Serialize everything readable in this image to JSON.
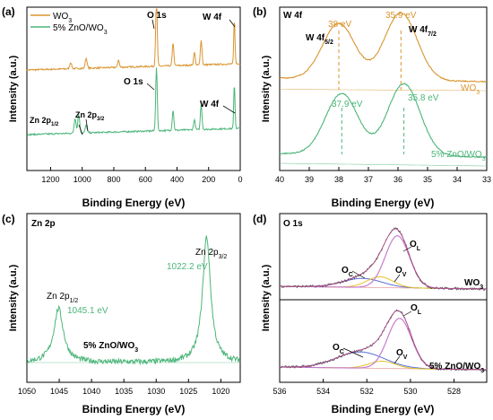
{
  "colors": {
    "wo3": "#d9952f",
    "zno": "#4cb57a",
    "axis": "#000000",
    "fit_purple": "#c77ccf",
    "fit_yellow": "#e6c32a",
    "fit_blue": "#5a6fd6",
    "fit_black": "#333333",
    "fit_baseline": "#e8a0a0"
  },
  "chart_data": [
    {
      "id": "a",
      "type": "line",
      "panel_label": "(a)",
      "xlabel": "Binding Energy (eV)",
      "ylabel": "Intensity (a.u.)",
      "xlim": [
        1350,
        0
      ],
      "xticks": [
        1200,
        1000,
        800,
        600,
        400,
        200,
        0
      ],
      "legend": [
        "WO3",
        "5% ZnO/WO3"
      ],
      "legend_position": "top-left",
      "series": [
        {
          "name": "WO3",
          "color": "#d9952f",
          "offset": 0.62,
          "peaks": [
            [
              1073,
              0.05
            ],
            [
              975,
              0.08
            ],
            [
              770,
              0.06
            ],
            [
              530,
              0.55
            ],
            [
              425,
              0.18
            ],
            [
              290,
              0.1
            ],
            [
              247,
              0.2
            ],
            [
              37,
              0.35
            ]
          ]
        },
        {
          "name": "5% ZnO/WO3",
          "color": "#4cb57a",
          "offset": 0.15,
          "peaks": [
            [
              1045,
              0.12
            ],
            [
              1022,
              0.15
            ],
            [
              975,
              0.06
            ],
            [
              530,
              0.5
            ],
            [
              425,
              0.16
            ],
            [
              290,
              0.08
            ],
            [
              247,
              0.2
            ],
            [
              37,
              0.35
            ]
          ]
        }
      ],
      "annotations": [
        {
          "text": "O 1s",
          "x": 530,
          "series": 0
        },
        {
          "text": "W 4f",
          "x": 37,
          "series": 0
        },
        {
          "text": "O 1s",
          "x": 530,
          "series": 1
        },
        {
          "text": "W 4f",
          "x": 37,
          "series": 1
        },
        {
          "text": "Zn 2p1/2",
          "x": 1045,
          "series": 1
        },
        {
          "text": "Zn 2p3/2",
          "x": 1022,
          "series": 1
        }
      ]
    },
    {
      "id": "b",
      "type": "line",
      "panel_label": "(b)",
      "title": "W 4f",
      "xlabel": "Binding Energy (eV)",
      "ylabel": "Intensity (a.u.)",
      "xlim": [
        40,
        33
      ],
      "xticks": [
        40,
        39,
        38,
        37,
        36,
        35,
        34,
        33
      ],
      "series": [
        {
          "name": "WO3",
          "color": "#d9952f",
          "label": "WO3",
          "peaks": [
            {
              "center": 38.0,
              "label": "38 eV"
            },
            {
              "center": 35.9,
              "label": "35.9 eV"
            }
          ]
        },
        {
          "name": "5% ZnO/WO3",
          "color": "#4cb57a",
          "label": "5% ZnO/WO3",
          "peaks": [
            {
              "center": 37.9,
              "label": "37.9 eV"
            },
            {
              "center": 35.8,
              "label": "35.8 eV"
            }
          ]
        }
      ],
      "peak_names": [
        "W 4f5/2",
        "W 4f7/2"
      ]
    },
    {
      "id": "c",
      "type": "line",
      "panel_label": "(c)",
      "title": "Zn 2p",
      "xlabel": "Binding Energy (eV)",
      "ylabel": "Intensity (a.u.)",
      "xlim": [
        1050,
        1017
      ],
      "xticks": [
        1050,
        1045,
        1040,
        1035,
        1030,
        1025,
        1020
      ],
      "series": [
        {
          "name": "5% ZnO/WO3",
          "color": "#4cb57a",
          "peaks": [
            {
              "center": 1045.1,
              "label": "1045.1 eV",
              "name": "Zn 2p1/2"
            },
            {
              "center": 1022.2,
              "label": "1022.2 eV",
              "name": "Zn 2p3/2"
            }
          ]
        }
      ],
      "sample_label": "5% ZnO/WO3"
    },
    {
      "id": "d",
      "type": "line",
      "panel_label": "(d)",
      "title": "O 1s",
      "xlabel": "Binding Energy (eV)",
      "ylabel": "Intensity (a.u.)",
      "xlim": [
        536,
        526.5
      ],
      "xticks": [
        536,
        534,
        532,
        530,
        528
      ],
      "subplots": [
        {
          "sample": "WO3",
          "components": {
            "OL": 530.6,
            "OV": 531.4,
            "OC": 532.2
          }
        },
        {
          "sample": "5% ZnO/WO3",
          "components": {
            "OL": 530.5,
            "OV": 531.3,
            "OC": 532.3
          }
        }
      ],
      "component_labels": [
        "OC",
        "OV",
        "OL"
      ]
    }
  ]
}
